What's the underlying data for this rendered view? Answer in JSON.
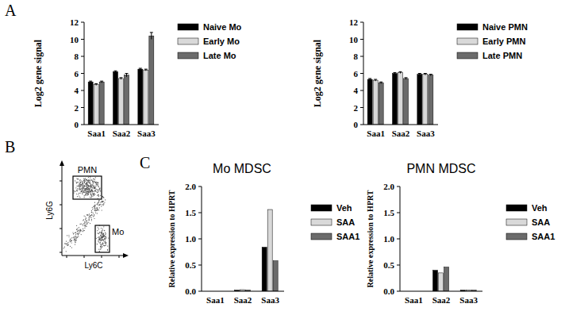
{
  "panel_labels": [
    "A",
    "B",
    "C"
  ],
  "chart_data": [
    {
      "type": "bar",
      "y_label": "Log2 gene signal",
      "categories": [
        "Saa1",
        "Saa2",
        "Saa3"
      ],
      "series": [
        {
          "name": "Naive Mo",
          "color": "#000000",
          "values": [
            5.0,
            6.2,
            6.5
          ],
          "errors": [
            0.1,
            0.1,
            0.1
          ]
        },
        {
          "name": "Early Mo",
          "color": "#d9d9d9",
          "values": [
            4.7,
            5.4,
            6.4
          ],
          "errors": [
            0.1,
            0.1,
            0.1
          ]
        },
        {
          "name": "Late Mo",
          "color": "#6b6b6b",
          "values": [
            5.0,
            5.8,
            10.4
          ],
          "errors": [
            0.1,
            0.2,
            0.4
          ]
        }
      ],
      "ylim": [
        0,
        12
      ],
      "yticks": [
        0,
        2,
        4,
        6,
        8,
        10,
        12
      ],
      "grid": false,
      "legend": "right"
    },
    {
      "type": "bar",
      "y_label": "Log2 gene signal",
      "categories": [
        "Saa1",
        "Saa2",
        "Saa3"
      ],
      "series": [
        {
          "name": "Naive PMN",
          "color": "#000000",
          "values": [
            5.3,
            6.0,
            5.9
          ],
          "errors": [
            0.1,
            0.1,
            0.1
          ]
        },
        {
          "name": "Early PMN",
          "color": "#d9d9d9",
          "values": [
            5.2,
            6.1,
            5.9
          ],
          "errors": [
            0.1,
            0.1,
            0.1
          ]
        },
        {
          "name": "Late PMN",
          "color": "#6b6b6b",
          "values": [
            4.9,
            5.4,
            5.8
          ],
          "errors": [
            0.1,
            0.1,
            0.1
          ]
        }
      ],
      "ylim": [
        0,
        12
      ],
      "yticks": [
        0,
        2,
        4,
        6,
        8,
        10,
        12
      ],
      "grid": false,
      "legend": "right"
    },
    {
      "type": "bar",
      "title": "Mo MDSC",
      "y_label": "Relative expression to HPRT",
      "categories": [
        "Saa1",
        "Saa2",
        "Saa3"
      ],
      "series": [
        {
          "name": "Veh",
          "color": "#000000",
          "values": [
            0,
            0.02,
            0.84
          ]
        },
        {
          "name": "SAA",
          "color": "#d9d9d9",
          "values": [
            0,
            0.03,
            1.56
          ]
        },
        {
          "name": "SAA1",
          "color": "#6b6b6b",
          "values": [
            0,
            0.02,
            0.58
          ]
        }
      ],
      "ylim": [
        0,
        2
      ],
      "yticks": [
        {
          "value": 0,
          "label": "0.0"
        },
        0.5,
        {
          "value": 1,
          "label": "1.0"
        },
        1.5,
        {
          "value": 2,
          "label": "2.0"
        }
      ],
      "grid": false,
      "legend": "right"
    },
    {
      "type": "bar",
      "title": "PMN MDSC",
      "y_label": "Relative expression to HPRT",
      "categories": [
        "Saa1",
        "Saa2",
        "Saa3"
      ],
      "series": [
        {
          "name": "Veh",
          "color": "#000000",
          "values": [
            0,
            0.4,
            0.02
          ]
        },
        {
          "name": "SAA",
          "color": "#d9d9d9",
          "values": [
            0,
            0.35,
            0.02
          ]
        },
        {
          "name": "SAA1",
          "color": "#6b6b6b",
          "values": [
            0,
            0.46,
            0.02
          ]
        }
      ],
      "ylim": [
        0,
        2
      ],
      "yticks": [
        {
          "value": 0,
          "label": "0.0"
        },
        0.5,
        {
          "value": 1,
          "label": "1.0"
        },
        1.5,
        {
          "value": 2,
          "label": "2.0"
        }
      ],
      "grid": false,
      "legend": "right"
    }
  ],
  "flow_plot": {
    "x_label": "Ly6C",
    "y_label": "Ly6G",
    "gates": [
      "PMN",
      "Mo"
    ]
  }
}
